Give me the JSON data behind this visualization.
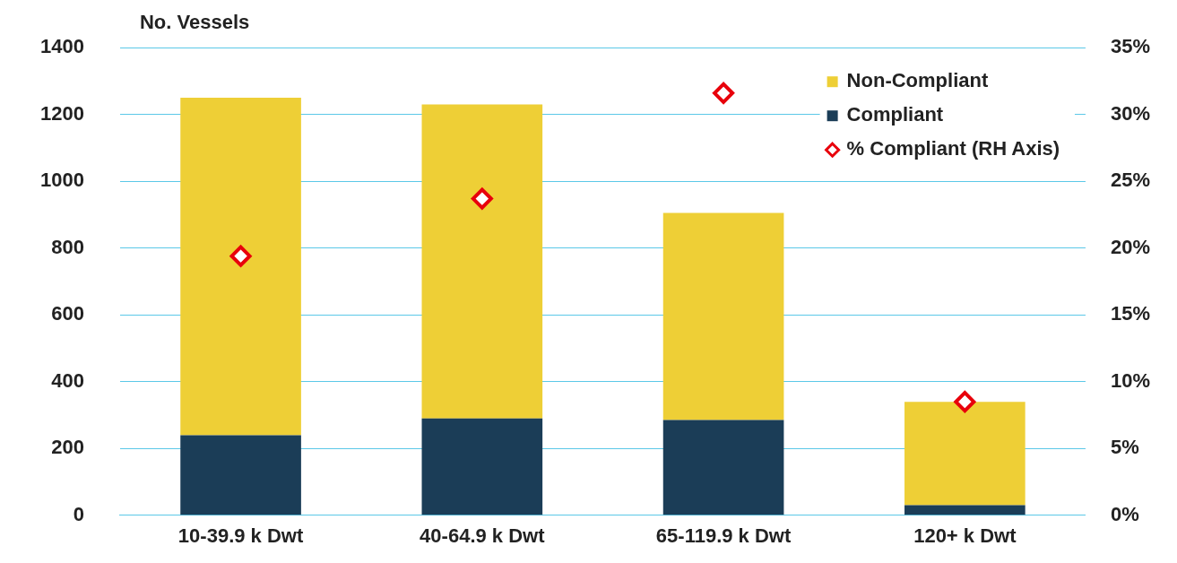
{
  "chart_data": {
    "type": "bar",
    "stacked": true,
    "ylabel": "No. Vessels",
    "categories": [
      "10-39.9 k Dwt",
      "40-64.9 k Dwt",
      "65-119.9 k Dwt",
      "120+ k Dwt"
    ],
    "series": [
      {
        "name": "Compliant",
        "color": "#1b3d57",
        "values": [
          240,
          290,
          285,
          30
        ]
      },
      {
        "name": "Non-Compliant",
        "color": "#eecf36",
        "values": [
          1010,
          940,
          620,
          310
        ]
      },
      {
        "name": "% Compliant (RH Axis)",
        "type": "scatter",
        "axis": "y2",
        "color": "#e8000b",
        "marker": "diamond",
        "x": [
          "10-39.9 k Dwt",
          "40-64.9 k Dwt",
          "65-119.9 k Dwt",
          "120+ k Dwt"
        ],
        "values": [
          19.4,
          23.7,
          31.6,
          8.5
        ]
      }
    ],
    "ylim": [
      0,
      1400
    ],
    "yticks": [
      0,
      200,
      400,
      600,
      800,
      1000,
      1200,
      1400
    ],
    "y2lim": [
      0,
      35
    ],
    "y2ticks": [
      {
        "value": 0,
        "label": "0%"
      },
      {
        "value": 5,
        "label": "5%"
      },
      {
        "value": 10,
        "label": "10%"
      },
      {
        "value": 15,
        "label": "15%"
      },
      {
        "value": 20,
        "label": "20%"
      },
      {
        "value": 25,
        "label": "25%"
      },
      {
        "value": 30,
        "label": "30%"
      },
      {
        "value": 35,
        "label": "35%"
      }
    ],
    "grid": "y",
    "legend": "top right"
  }
}
